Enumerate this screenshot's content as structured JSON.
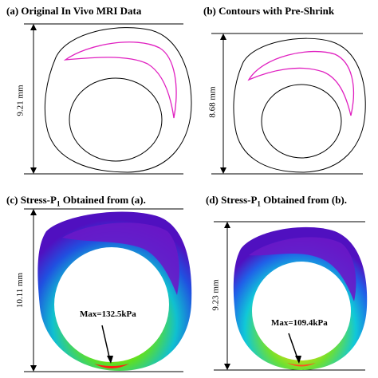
{
  "panels": {
    "a": {
      "label": "(a)",
      "title": "Original In Vivo MRI  Data",
      "dimension": "9.21 mm"
    },
    "b": {
      "label": "(b)",
      "title": "Contours with Pre-Shrink",
      "dimension": "8.68 mm"
    },
    "c": {
      "label": "(c)",
      "title_main": "Stress-P",
      "title_sub": "1",
      "title_rest": " Obtained from (a).",
      "dimension": "10.11 mm",
      "max_label": "Max=132.5kPa"
    },
    "d": {
      "label": "(d)",
      "title_main": "Stress-P",
      "title_sub": "1",
      "title_rest": " Obtained from (b).",
      "dimension": "9.23 mm",
      "max_label": "Max=109.4kPa"
    }
  },
  "colors": {
    "plaque_contour": "#e020c0",
    "high_stress": "#d02020",
    "low_stress": "#5010c0"
  }
}
